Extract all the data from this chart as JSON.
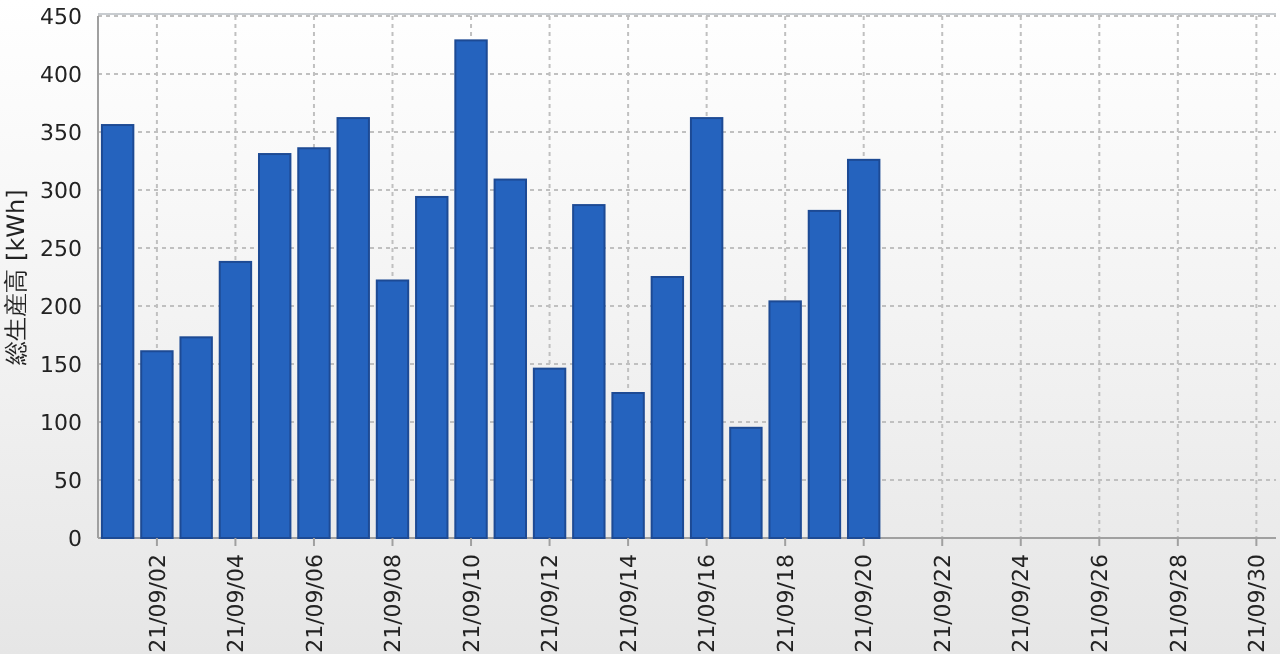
{
  "chart_data": {
    "type": "bar",
    "ylabel": "総生産高 [kWh]",
    "categories": [
      null,
      "21/09/02",
      null,
      "21/09/04",
      null,
      "21/09/06",
      null,
      "21/09/08",
      null,
      "21/09/10",
      null,
      "21/09/12",
      null,
      "21/09/14",
      null,
      "21/09/16",
      null,
      "21/09/18",
      null,
      "21/09/20",
      null,
      "21/09/22",
      null,
      "21/09/24",
      null,
      "21/09/26",
      null,
      "21/09/28",
      null,
      "21/09/30"
    ],
    "values": [
      356,
      161,
      173,
      238,
      331,
      336,
      362,
      222,
      294,
      429,
      309,
      146,
      287,
      125,
      225,
      362,
      95,
      204,
      282,
      326,
      null,
      null,
      null,
      null,
      null,
      null,
      null,
      null,
      null,
      null
    ],
    "color": "#2563be",
    "ylim": [
      0,
      450
    ],
    "yticks": [
      0,
      50,
      100,
      150,
      200,
      250,
      300,
      350,
      400,
      450
    ],
    "grid": true
  }
}
